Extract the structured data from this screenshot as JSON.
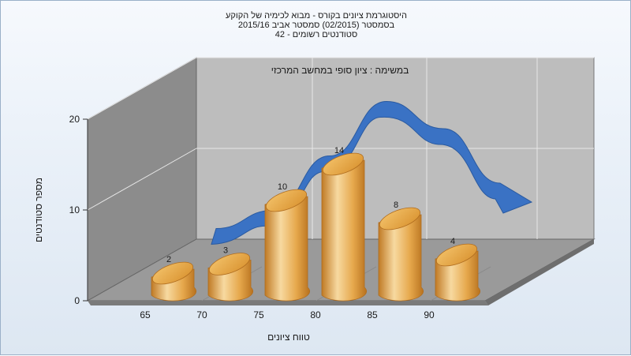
{
  "chart_data": {
    "type": "bar",
    "title_lines": [
      "היסטוגרמת ציונים בקורס - מבוא לכימיה של הקוקע",
      "בסמסטר  (02/2015)  סמסטר אביב 2015/16",
      "סטודנטים רשומים - 42"
    ],
    "inner_title": "במשימה : ציון סופי במחשב המרכזי",
    "categories": [
      "65",
      "70",
      "75",
      "80",
      "85",
      "90"
    ],
    "values": [
      2,
      3,
      10,
      14,
      8,
      4
    ],
    "trend": [
      1,
      3,
      9,
      15,
      12,
      6
    ],
    "ylim": [
      0,
      20
    ],
    "yticks": [
      "0",
      "10",
      "20"
    ],
    "ylabel": "מספר סטודנטים",
    "xlabel": "טווח ציונים",
    "grid": true,
    "colors": {
      "bar_light": "#f7d9a0",
      "bar_mid": "#e6a84c",
      "bar_dark": "#c07a25",
      "trend": "#3a72c4",
      "back_wall": "#bdbdbd",
      "side_wall": "#8c8c8c",
      "floor": "#9a9a9a"
    }
  }
}
